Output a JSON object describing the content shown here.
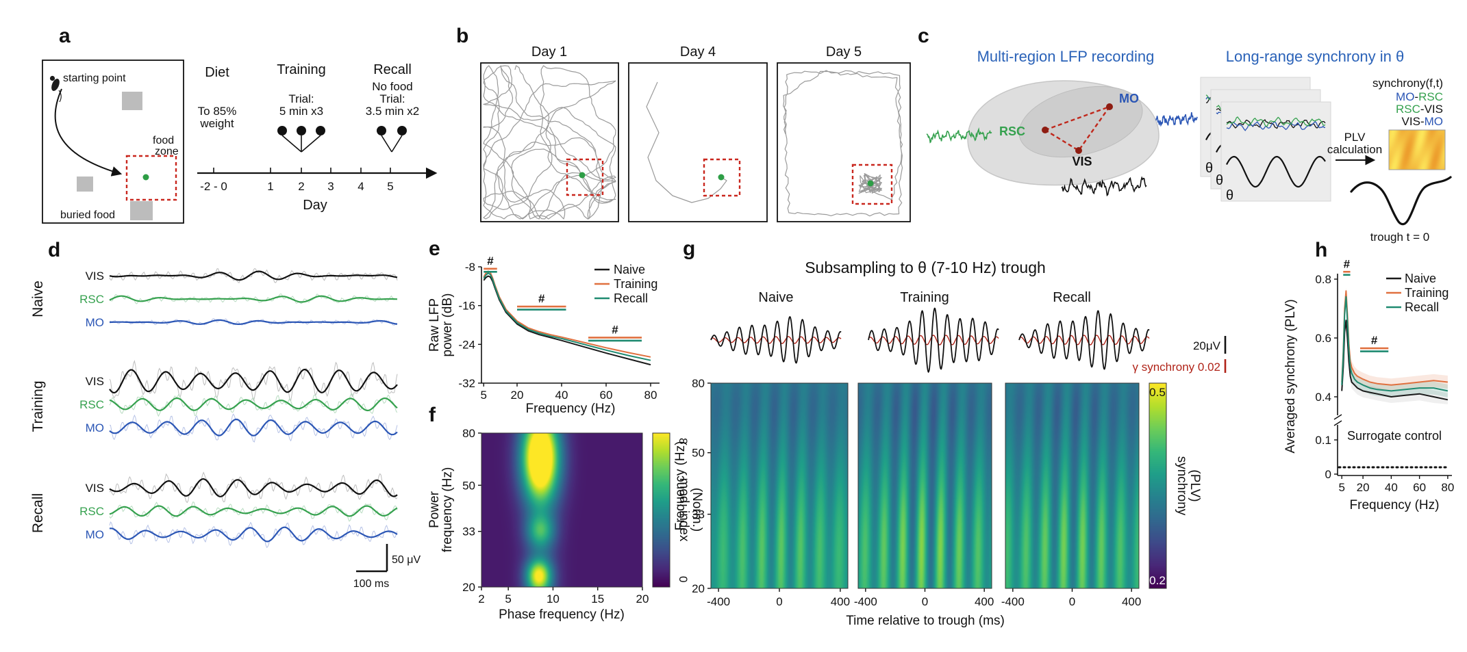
{
  "colors": {
    "naive": "#1a1a1a",
    "training": "#e0703f",
    "recall": "#1e8a70",
    "vis": "#111111",
    "rsc": "#35a14e",
    "mo": "#2b56b5",
    "title_blue": "#2a62b8",
    "food_zone_red": "#c9271e",
    "electrode_red": "#8e1d12",
    "gamma_red": "#b02318",
    "trajectory_gray": "#8f8f8f",
    "green_dot": "#2e9e46"
  },
  "panel_a": {
    "label": "a",
    "arena": {
      "starting_point": "starting point",
      "food_line1": "food",
      "food_line2": "zone",
      "buried_food": "buried food"
    },
    "timeline": {
      "diet_header": "Diet",
      "training_header": "Training",
      "recall_header": "Recall",
      "diet_note_line1": "To 85%",
      "diet_note_line2": "weight",
      "training_note_line1": "Trial:",
      "training_note_line2": "5 min x3",
      "recall_note_line1": "No food",
      "recall_note_line2": "Trial:",
      "recall_note_line3": "3.5 min x2",
      "ticks": [
        "-2 - 0",
        "1",
        "2",
        "3",
        "4",
        "5"
      ],
      "axis_label": "Day"
    }
  },
  "panel_b": {
    "label": "b",
    "days": [
      "Day 1",
      "Day 4",
      "Day 5"
    ]
  },
  "panel_c": {
    "label": "c",
    "title_left": "Multi-region LFP recording",
    "title_right": "Long-range synchrony in θ",
    "regions": {
      "rsc": "RSC",
      "mo": "MO",
      "vis": "VIS"
    },
    "theta": "θ",
    "plv_line1": "PLV",
    "plv_line2": "calculation",
    "synchrony_label": "synchrony(f,t)",
    "pairs": [
      {
        "a": "MO",
        "sep": "-",
        "b": "RSC"
      },
      {
        "a": "RSC",
        "sep": "-",
        "b": "VIS"
      },
      {
        "a": "VIS",
        "sep": "-",
        "b": "MO"
      }
    ],
    "trough_label": "trough t = 0"
  },
  "panel_d": {
    "label": "d",
    "groups": [
      "Naive",
      "Training",
      "Recall"
    ],
    "rows": [
      "VIS",
      "RSC",
      "MO"
    ],
    "scale_v": "50 μV",
    "scale_h": "100 ms"
  },
  "panel_e": {
    "label": "e",
    "ylabel_line1": "Raw LFP",
    "ylabel_line2": "power (dB)",
    "xlabel": "Frequency (Hz)"
  },
  "panel_f": {
    "label": "f",
    "ylabel_line1": "Power",
    "ylabel_line2": "frequency (Hz)",
    "xlabel": "Phase frequency (Hz)",
    "cbar_line1": "mod. index",
    "cbar_line2": "(Norm.)",
    "cbar_max": "8",
    "cbar_min": "0"
  },
  "panel_g": {
    "label": "g",
    "title": "Subsampling to θ (7-10 Hz) trough",
    "conditions": [
      "Naive",
      "Training",
      "Recall"
    ],
    "scale_uv": "20μV",
    "scale_gamma": "γ synchrony 0.02",
    "ylabel": "Frequency (Hz)",
    "xlabel": "Time relative to trough (ms)",
    "cbar_line1": "synchrony",
    "cbar_line2": "(PLV)",
    "cbar_max": "0.5",
    "cbar_min": "0.2"
  },
  "panel_h": {
    "label": "h",
    "ylabel": "Averaged synchrony (PLV)",
    "xlabel": "Frequency (Hz)"
  },
  "chart_data": [
    {
      "panel": "e",
      "type": "line",
      "title": "",
      "xlabel": "Frequency (Hz)",
      "ylabel": "Raw LFP power (dB)",
      "xlim": [
        4,
        84
      ],
      "ylim": [
        -32,
        -8
      ],
      "xticks": [
        5,
        20,
        40,
        60,
        80
      ],
      "yticks": [
        -8,
        -16,
        -24,
        -32
      ],
      "x": [
        5,
        6,
        7,
        8,
        9,
        10,
        12,
        15,
        20,
        25,
        30,
        35,
        40,
        50,
        60,
        70,
        80
      ],
      "series": [
        {
          "name": "Naive",
          "color_key": "naive",
          "values": [
            -10.8,
            -10.2,
            -9.9,
            -10.1,
            -11.0,
            -12.3,
            -14.8,
            -17.4,
            -19.8,
            -21.2,
            -22.0,
            -22.6,
            -23.2,
            -24.5,
            -25.8,
            -27.0,
            -28.2
          ]
        },
        {
          "name": "Training",
          "color_key": "training",
          "values": [
            -10.1,
            -9.3,
            -8.9,
            -9.2,
            -10.3,
            -11.7,
            -14.2,
            -16.8,
            -19.2,
            -20.6,
            -21.4,
            -22.0,
            -22.5,
            -23.6,
            -24.7,
            -25.7,
            -26.6
          ]
        },
        {
          "name": "Recall",
          "color_key": "recall",
          "values": [
            -10.4,
            -9.7,
            -9.3,
            -9.6,
            -10.6,
            -12.0,
            -14.5,
            -17.1,
            -19.5,
            -20.9,
            -21.7,
            -22.3,
            -22.8,
            -24.0,
            -25.2,
            -26.3,
            -27.3
          ]
        }
      ],
      "sig_symbol": "#",
      "sig_markers": [
        {
          "x0": 5,
          "x1": 11,
          "y": -8.4
        },
        {
          "x0": 20,
          "x1": 42,
          "y": -16.2
        },
        {
          "x0": 52,
          "x1": 76,
          "y": -22.6
        }
      ],
      "legend_position": "top-right"
    },
    {
      "panel": "f",
      "type": "heatmap",
      "xlabel": "Phase frequency (Hz)",
      "ylabel": "Power frequency (Hz)",
      "xlim": [
        2,
        20
      ],
      "ylim_log": [
        20,
        80
      ],
      "xticks": [
        2,
        5,
        10,
        15,
        20
      ],
      "yticks": [
        80,
        50,
        33,
        20
      ],
      "colorbar": {
        "label": "mod. index (Norm.)",
        "min": 0,
        "max": 8
      },
      "base": 0.07,
      "column_glow": 0.18,
      "hotspots": [
        {
          "phase_center": 8.6,
          "phase_sigma": 1.5,
          "power_log_center": 64,
          "power_log_sigma": 0.12,
          "strength": 1.15
        },
        {
          "phase_center": 8.6,
          "phase_sigma": 1.1,
          "power_center": 33,
          "power_sigma": 3.5,
          "strength": 0.42
        },
        {
          "phase_center": 8.4,
          "phase_sigma": 1.0,
          "power_center": 22,
          "power_sigma": 2.4,
          "strength": 0.8
        }
      ]
    },
    {
      "panel": "g",
      "type": "heatmap",
      "conditions": [
        "Naive",
        "Training",
        "Recall"
      ],
      "xlabel": "Time relative to trough (ms)",
      "ylabel": "Frequency (Hz)",
      "xlim": [
        -450,
        450
      ],
      "ylim_log": [
        20,
        80
      ],
      "xticks": [
        -400,
        0,
        400
      ],
      "yticks": [
        80,
        50,
        33,
        20
      ],
      "colorbar": {
        "label": "synchrony (PLV)",
        "min": 0.2,
        "max": 0.5
      },
      "theta_period_ms": 128,
      "stripe_strengths": [
        0.8,
        1.2,
        1.05
      ]
    },
    {
      "panel": "h",
      "type": "line",
      "xlabel": "Frequency (Hz)",
      "ylabel": "Averaged synchrony (PLV)",
      "xticks": [
        5,
        20,
        40,
        60,
        80
      ],
      "yticks": [
        0.8,
        0.6,
        0.4,
        0.1,
        0
      ],
      "axis_break": [
        0.12,
        0.38
      ],
      "x": [
        5,
        6,
        7,
        8,
        9,
        10,
        11,
        12,
        14,
        16,
        20,
        25,
        30,
        40,
        50,
        60,
        70,
        80
      ],
      "series": [
        {
          "name": "Naive",
          "color_key": "naive",
          "values": [
            0.42,
            0.5,
            0.62,
            0.66,
            0.6,
            0.52,
            0.47,
            0.45,
            0.44,
            0.43,
            0.42,
            0.415,
            0.41,
            0.4,
            0.405,
            0.41,
            0.4,
            0.39
          ]
        },
        {
          "name": "Training",
          "color_key": "training",
          "values": [
            0.45,
            0.55,
            0.7,
            0.76,
            0.68,
            0.58,
            0.52,
            0.5,
            0.48,
            0.47,
            0.46,
            0.45,
            0.445,
            0.44,
            0.445,
            0.45,
            0.455,
            0.45
          ]
        },
        {
          "name": "Recall",
          "color_key": "recall",
          "values": [
            0.44,
            0.54,
            0.68,
            0.74,
            0.66,
            0.56,
            0.5,
            0.48,
            0.46,
            0.45,
            0.44,
            0.43,
            0.425,
            0.42,
            0.425,
            0.43,
            0.43,
            0.42
          ]
        }
      ],
      "surrogate": {
        "label": "Surrogate control",
        "value": 0.02
      },
      "sig_symbol": "#",
      "sig_markers": [
        {
          "x0": 6,
          "x1": 11,
          "y": 0.825
        },
        {
          "x0": 18,
          "x1": 38,
          "y": 0.565
        }
      ]
    }
  ]
}
